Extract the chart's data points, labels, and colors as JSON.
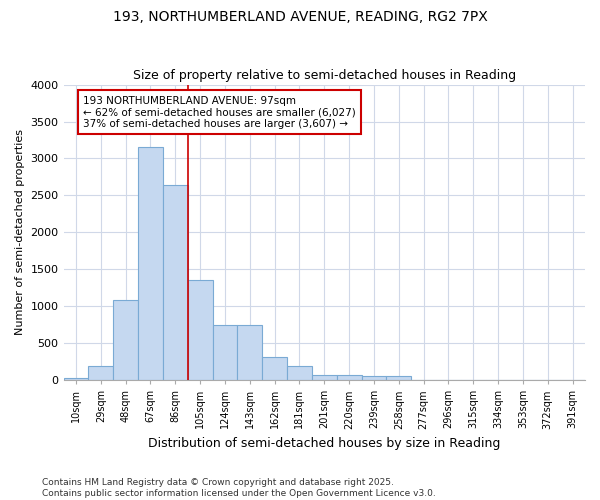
{
  "title": "193, NORTHUMBERLAND AVENUE, READING, RG2 7PX",
  "subtitle": "Size of property relative to semi-detached houses in Reading",
  "xlabel": "Distribution of semi-detached houses by size in Reading",
  "ylabel": "Number of semi-detached properties",
  "categories": [
    "10sqm",
    "29sqm",
    "48sqm",
    "67sqm",
    "86sqm",
    "105sqm",
    "124sqm",
    "143sqm",
    "162sqm",
    "181sqm",
    "201sqm",
    "220sqm",
    "239sqm",
    "258sqm",
    "277sqm",
    "296sqm",
    "315sqm",
    "334sqm",
    "353sqm",
    "372sqm",
    "391sqm"
  ],
  "values": [
    30,
    190,
    1090,
    3150,
    2640,
    1360,
    750,
    750,
    310,
    185,
    75,
    75,
    55,
    50,
    0,
    0,
    0,
    0,
    0,
    0,
    0
  ],
  "bar_color": "#c5d8f0",
  "bar_edge_color": "#7aaad4",
  "vline_color": "#cc0000",
  "vline_pos": 4.5,
  "annotation_text": "193 NORTHUMBERLAND AVENUE: 97sqm\n← 62% of semi-detached houses are smaller (6,027)\n37% of semi-detached houses are larger (3,607) →",
  "annotation_box_color": "white",
  "annotation_box_edge": "#cc0000",
  "ylim": [
    0,
    4000
  ],
  "yticks": [
    0,
    500,
    1000,
    1500,
    2000,
    2500,
    3000,
    3500,
    4000
  ],
  "footer": "Contains HM Land Registry data © Crown copyright and database right 2025.\nContains public sector information licensed under the Open Government Licence v3.0.",
  "bg_color": "#ffffff",
  "plot_bg_color": "#ffffff",
  "grid_color": "#d0d8e8",
  "title_fontsize": 10,
  "subtitle_fontsize": 9,
  "annotation_fontsize": 7.5,
  "footer_fontsize": 6.5,
  "ylabel_fontsize": 8,
  "xlabel_fontsize": 9
}
